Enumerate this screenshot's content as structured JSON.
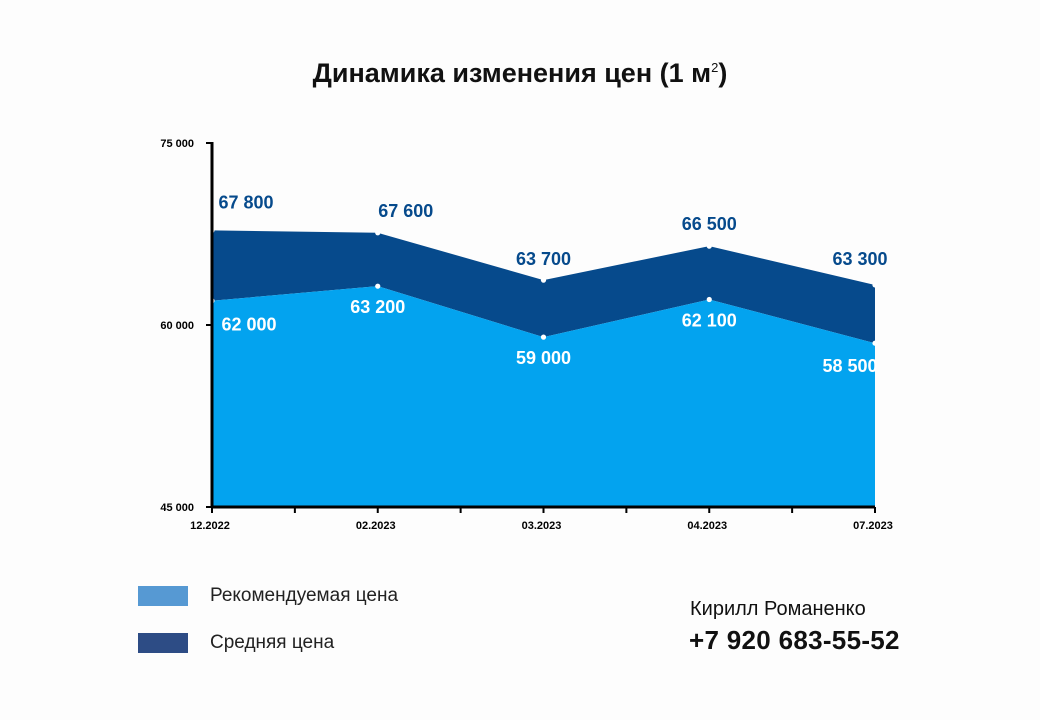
{
  "title_main": "Динамика изменения цен (1 м",
  "title_sup": "2",
  "title_end": ")",
  "chart_data": {
    "type": "area",
    "title": "Динамика изменения цен (1 м2)",
    "categories": [
      "12.2022",
      "02.2023",
      "03.2023",
      "04.2023",
      "07.2023"
    ],
    "series": [
      {
        "name": "Рекомендуемая цена",
        "values": [
          62000,
          63200,
          59000,
          62100,
          58500
        ],
        "color": "#03a3ef"
      },
      {
        "name": "Средняя цена",
        "values": [
          67800,
          67600,
          63700,
          66500,
          63300
        ],
        "color": "#064a8c"
      }
    ],
    "ylim": [
      45000,
      75000
    ],
    "yticks": [
      45000,
      60000,
      75000
    ],
    "ytick_labels": [
      "45 000",
      "60 000",
      "75 000"
    ],
    "value_labels_avg": [
      "67 800",
      "67 600",
      "63 700",
      "66 500",
      "63 300"
    ],
    "value_labels_rec": [
      "62 000",
      "63 200",
      "59 000",
      "62 100",
      "58 500"
    ],
    "grid": false,
    "legend_position": "bottom-left"
  },
  "legend": [
    {
      "label": "Рекомендуемая цена",
      "color": "#5699d3"
    },
    {
      "label": "Средняя цена",
      "color": "#2d4c85"
    }
  ],
  "contact": {
    "name": "Кирилл Романенко",
    "phone": "+7 920 683-55-52"
  }
}
